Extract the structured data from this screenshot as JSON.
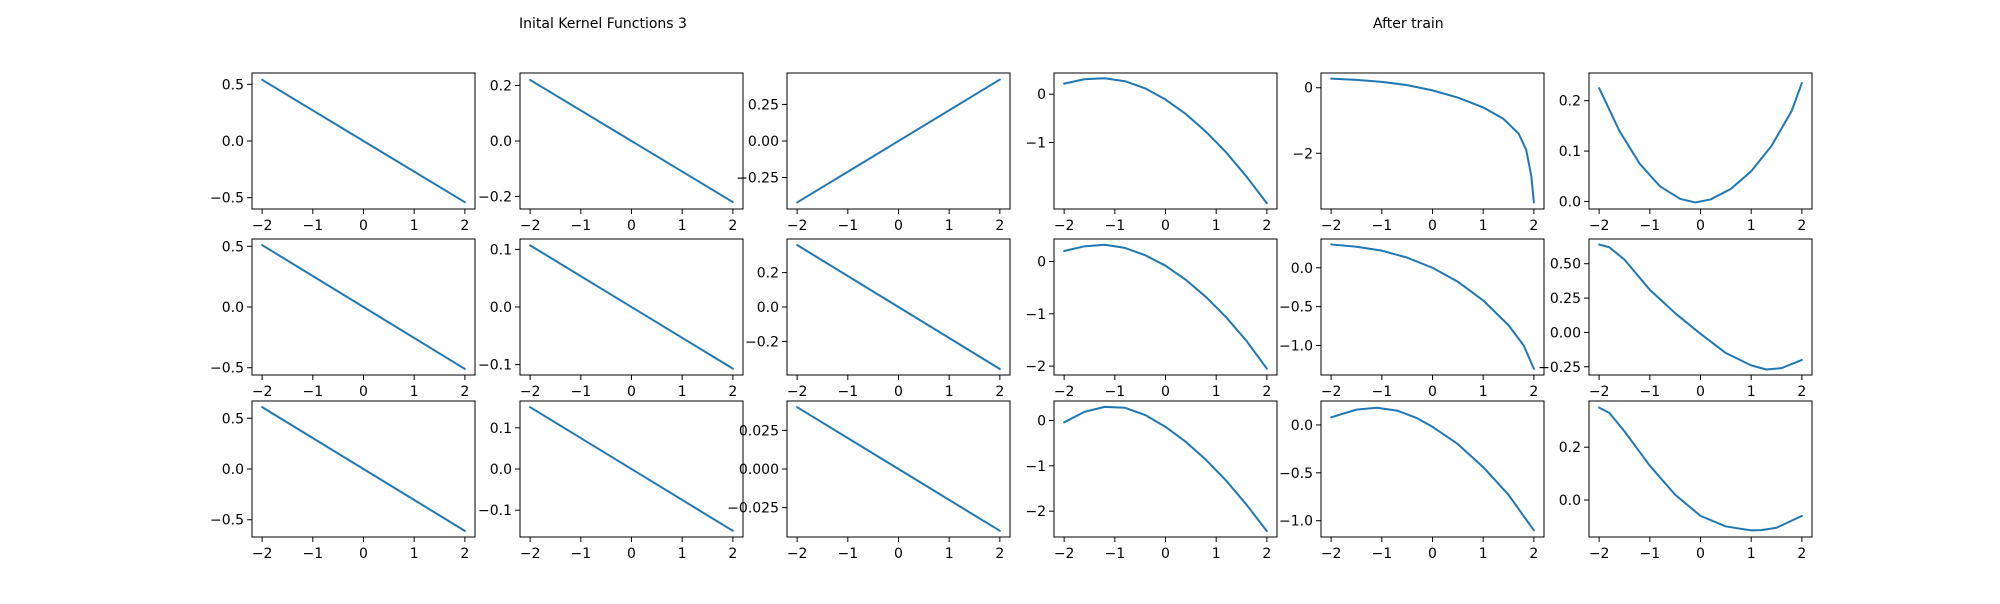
{
  "figure": {
    "title_left": "Inital Kernel Functions 3",
    "title_right": "After train",
    "line_color": "#1f77b4"
  },
  "chart_data": [
    {
      "type": "line",
      "x": [
        -2,
        2
      ],
      "y": [
        0.54,
        -0.54
      ],
      "xlim": [
        -2.2,
        2.2
      ],
      "ylim": [
        -0.6,
        0.6
      ],
      "xticks": [
        -2,
        -1,
        0,
        1,
        2
      ],
      "yticks": [
        -0.5,
        0.0,
        0.5
      ],
      "xtick_labels": [
        "−2",
        "−1",
        "0",
        "1",
        "2"
      ],
      "ytick_labels": [
        "−0.5",
        "0.0",
        "0.5"
      ]
    },
    {
      "type": "line",
      "x": [
        -2,
        2
      ],
      "y": [
        0.22,
        -0.22
      ],
      "xlim": [
        -2.2,
        2.2
      ],
      "ylim": [
        -0.245,
        0.245
      ],
      "xticks": [
        -2,
        -1,
        0,
        1,
        2
      ],
      "yticks": [
        -0.2,
        0.0,
        0.2
      ],
      "xtick_labels": [
        "−2",
        "−1",
        "0",
        "1",
        "2"
      ],
      "ytick_labels": [
        "−0.2",
        "0.0",
        "0.2"
      ]
    },
    {
      "type": "line",
      "x": [
        -2,
        2
      ],
      "y": [
        -0.42,
        0.42
      ],
      "xlim": [
        -2.2,
        2.2
      ],
      "ylim": [
        -0.465,
        0.465
      ],
      "xticks": [
        -2,
        -1,
        0,
        1,
        2
      ],
      "yticks": [
        -0.25,
        0.0,
        0.25
      ],
      "xtick_labels": [
        "−2",
        "−1",
        "0",
        "1",
        "2"
      ],
      "ytick_labels": [
        "−0.25",
        "0.00",
        "0.25"
      ]
    },
    {
      "type": "line",
      "x": [
        -2,
        -1.6,
        -1.2,
        -0.8,
        -0.4,
        0,
        0.4,
        0.8,
        1.2,
        1.6,
        2
      ],
      "y": [
        0.22,
        0.31,
        0.33,
        0.27,
        0.12,
        -0.11,
        -0.41,
        -0.78,
        -1.21,
        -1.71,
        -2.26
      ],
      "xlim": [
        -2.2,
        2.2
      ],
      "ylim": [
        -2.38,
        0.44
      ],
      "xticks": [
        -2,
        -1,
        0,
        1,
        2
      ],
      "yticks": [
        -1,
        0
      ],
      "xtick_labels": [
        "−2",
        "−1",
        "0",
        "1",
        "2"
      ],
      "ytick_labels": [
        "−1",
        "0"
      ]
    },
    {
      "type": "line",
      "x": [
        -2,
        -1.5,
        -1,
        -0.5,
        0,
        0.5,
        1,
        1.4,
        1.7,
        1.85,
        1.95,
        2
      ],
      "y": [
        0.28,
        0.24,
        0.18,
        0.08,
        -0.08,
        -0.3,
        -0.6,
        -0.95,
        -1.4,
        -1.9,
        -2.7,
        -3.5
      ],
      "xlim": [
        -2.2,
        2.2
      ],
      "ylim": [
        -3.7,
        0.45
      ],
      "xticks": [
        -2,
        -1,
        0,
        1,
        2
      ],
      "yticks": [
        -2,
        0
      ],
      "xtick_labels": [
        "−2",
        "−1",
        "0",
        "1",
        "2"
      ],
      "ytick_labels": [
        "−2",
        "0"
      ]
    },
    {
      "type": "line",
      "x": [
        -2,
        -1.6,
        -1.2,
        -0.8,
        -0.4,
        -0.1,
        0.2,
        0.6,
        1,
        1.4,
        1.8,
        2
      ],
      "y": [
        0.225,
        0.14,
        0.075,
        0.03,
        0.005,
        -0.002,
        0.004,
        0.025,
        0.06,
        0.11,
        0.18,
        0.235
      ],
      "xlim": [
        -2.2,
        2.2
      ],
      "ylim": [
        -0.015,
        0.255
      ],
      "xticks": [
        -2,
        -1,
        0,
        1,
        2
      ],
      "yticks": [
        0.0,
        0.1,
        0.2
      ],
      "xtick_labels": [
        "−2",
        "−1",
        "0",
        "1",
        "2"
      ],
      "ytick_labels": [
        "0.0",
        "0.1",
        "0.2"
      ]
    },
    {
      "type": "line",
      "x": [
        -2,
        2
      ],
      "y": [
        0.51,
        -0.51
      ],
      "xlim": [
        -2.2,
        2.2
      ],
      "ylim": [
        -0.56,
        0.56
      ],
      "xticks": [
        -2,
        -1,
        0,
        1,
        2
      ],
      "yticks": [
        -0.5,
        0.0,
        0.5
      ],
      "xtick_labels": [
        "−2",
        "−1",
        "0",
        "1",
        "2"
      ],
      "ytick_labels": [
        "−0.5",
        "0.0",
        "0.5"
      ]
    },
    {
      "type": "line",
      "x": [
        -2,
        2
      ],
      "y": [
        0.107,
        -0.107
      ],
      "xlim": [
        -2.2,
        2.2
      ],
      "ylim": [
        -0.118,
        0.118
      ],
      "xticks": [
        -2,
        -1,
        0,
        1,
        2
      ],
      "yticks": [
        -0.1,
        0.0,
        0.1
      ],
      "xtick_labels": [
        "−2",
        "−1",
        "0",
        "1",
        "2"
      ],
      "ytick_labels": [
        "−0.1",
        "0.0",
        "0.1"
      ]
    },
    {
      "type": "line",
      "x": [
        -2,
        2
      ],
      "y": [
        0.36,
        -0.36
      ],
      "xlim": [
        -2.2,
        2.2
      ],
      "ylim": [
        -0.395,
        0.395
      ],
      "xticks": [
        -2,
        -1,
        0,
        1,
        2
      ],
      "yticks": [
        -0.2,
        0.0,
        0.2
      ],
      "xtick_labels": [
        "−2",
        "−1",
        "0",
        "1",
        "2"
      ],
      "ytick_labels": [
        "−0.2",
        "0.0",
        "0.2"
      ]
    },
    {
      "type": "line",
      "x": [
        -2,
        -1.6,
        -1.2,
        -0.8,
        -0.4,
        0,
        0.4,
        0.8,
        1.2,
        1.6,
        2
      ],
      "y": [
        0.2,
        0.29,
        0.32,
        0.26,
        0.12,
        -0.08,
        -0.35,
        -0.68,
        -1.07,
        -1.52,
        -2.05
      ],
      "xlim": [
        -2.2,
        2.2
      ],
      "ylim": [
        -2.17,
        0.43
      ],
      "xticks": [
        -2,
        -1,
        0,
        1,
        2
      ],
      "yticks": [
        -2,
        -1,
        0
      ],
      "xtick_labels": [
        "−2",
        "−1",
        "0",
        "1",
        "2"
      ],
      "ytick_labels": [
        "−2",
        "−1",
        "0"
      ]
    },
    {
      "type": "line",
      "x": [
        -2,
        -1.5,
        -1,
        -0.5,
        0,
        0.5,
        1,
        1.5,
        1.8,
        2
      ],
      "y": [
        0.3,
        0.27,
        0.22,
        0.13,
        0.0,
        -0.18,
        -0.42,
        -0.74,
        -1.0,
        -1.3
      ],
      "xlim": [
        -2.2,
        2.2
      ],
      "ylim": [
        -1.38,
        0.37
      ],
      "xticks": [
        -2,
        -1,
        0,
        1,
        2
      ],
      "yticks": [
        -1.0,
        -0.5,
        0.0
      ],
      "xtick_labels": [
        "−2",
        "−1",
        "0",
        "1",
        "2"
      ],
      "ytick_labels": [
        "−1.0",
        "−0.5",
        "0.0"
      ]
    },
    {
      "type": "line",
      "x": [
        -2,
        -1.8,
        -1.5,
        -1,
        -0.5,
        0,
        0.5,
        1,
        1.3,
        1.6,
        2
      ],
      "y": [
        0.64,
        0.62,
        0.53,
        0.31,
        0.14,
        -0.01,
        -0.15,
        -0.24,
        -0.27,
        -0.26,
        -0.2
      ],
      "xlim": [
        -2.2,
        2.2
      ],
      "ylim": [
        -0.31,
        0.68
      ],
      "xticks": [
        -2,
        -1,
        0,
        1,
        2
      ],
      "yticks": [
        -0.25,
        0.0,
        0.25,
        0.5
      ],
      "xtick_labels": [
        "−2",
        "−1",
        "0",
        "1",
        "2"
      ],
      "ytick_labels": [
        "−0.25",
        "0.00",
        "0.25",
        "0.50"
      ]
    },
    {
      "type": "line",
      "x": [
        -2,
        2
      ],
      "y": [
        0.61,
        -0.61
      ],
      "xlim": [
        -2.2,
        2.2
      ],
      "ylim": [
        -0.67,
        0.67
      ],
      "xticks": [
        -2,
        -1,
        0,
        1,
        2
      ],
      "yticks": [
        -0.5,
        0.0,
        0.5
      ],
      "xtick_labels": [
        "−2",
        "−1",
        "0",
        "1",
        "2"
      ],
      "ytick_labels": [
        "−0.5",
        "0.0",
        "0.5"
      ]
    },
    {
      "type": "line",
      "x": [
        -2,
        2
      ],
      "y": [
        0.15,
        -0.15
      ],
      "xlim": [
        -2.2,
        2.2
      ],
      "ylim": [
        -0.165,
        0.165
      ],
      "xticks": [
        -2,
        -1,
        0,
        1,
        2
      ],
      "yticks": [
        -0.1,
        0.0,
        0.1
      ],
      "xtick_labels": [
        "−2",
        "−1",
        "0",
        "1",
        "2"
      ],
      "ytick_labels": [
        "−0.1",
        "0.0",
        "0.1"
      ]
    },
    {
      "type": "line",
      "x": [
        -2,
        2
      ],
      "y": [
        0.04,
        -0.04
      ],
      "xlim": [
        -2.2,
        2.2
      ],
      "ylim": [
        -0.044,
        0.044
      ],
      "xticks": [
        -2,
        -1,
        0,
        1,
        2
      ],
      "yticks": [
        -0.025,
        0.0,
        0.025
      ],
      "xtick_labels": [
        "−2",
        "−1",
        "0",
        "1",
        "2"
      ],
      "ytick_labels": [
        "−0.025",
        "0.000",
        "0.025"
      ]
    },
    {
      "type": "line",
      "x": [
        -2,
        -1.6,
        -1.2,
        -0.8,
        -0.4,
        0,
        0.4,
        0.8,
        1.2,
        1.6,
        2
      ],
      "y": [
        -0.04,
        0.19,
        0.3,
        0.28,
        0.12,
        -0.14,
        -0.47,
        -0.87,
        -1.33,
        -1.86,
        -2.44
      ],
      "xlim": [
        -2.2,
        2.2
      ],
      "ylim": [
        -2.57,
        0.43
      ],
      "xticks": [
        -2,
        -1,
        0,
        1,
        2
      ],
      "yticks": [
        -2,
        -1,
        0
      ],
      "xtick_labels": [
        "−2",
        "−1",
        "0",
        "1",
        "2"
      ],
      "ytick_labels": [
        "−2",
        "−1",
        "0"
      ]
    },
    {
      "type": "line",
      "x": [
        -2,
        -1.5,
        -1.1,
        -0.7,
        -0.3,
        0,
        0.5,
        1,
        1.5,
        2
      ],
      "y": [
        0.08,
        0.16,
        0.18,
        0.15,
        0.07,
        -0.02,
        -0.2,
        -0.44,
        -0.73,
        -1.1
      ],
      "xlim": [
        -2.2,
        2.2
      ],
      "ylim": [
        -1.17,
        0.25
      ],
      "xticks": [
        -2,
        -1,
        0,
        1,
        2
      ],
      "yticks": [
        -1.0,
        -0.5,
        0.0
      ],
      "xtick_labels": [
        "−2",
        "−1",
        "0",
        "1",
        "2"
      ],
      "ytick_labels": [
        "−1.0",
        "−0.5",
        "0.0"
      ]
    },
    {
      "type": "line",
      "x": [
        -2,
        -1.8,
        -1.5,
        -1,
        -0.5,
        0,
        0.5,
        1,
        1.2,
        1.5,
        2
      ],
      "y": [
        0.35,
        0.33,
        0.26,
        0.13,
        0.02,
        -0.06,
        -0.1,
        -0.115,
        -0.114,
        -0.105,
        -0.06
      ],
      "xlim": [
        -2.2,
        2.2
      ],
      "ylim": [
        -0.14,
        0.375
      ],
      "xticks": [
        -2,
        -1,
        0,
        1,
        2
      ],
      "yticks": [
        0.0,
        0.2
      ],
      "xtick_labels": [
        "−2",
        "−1",
        "0",
        "1",
        "2"
      ],
      "ytick_labels": [
        "0.0",
        "0.2"
      ]
    }
  ]
}
